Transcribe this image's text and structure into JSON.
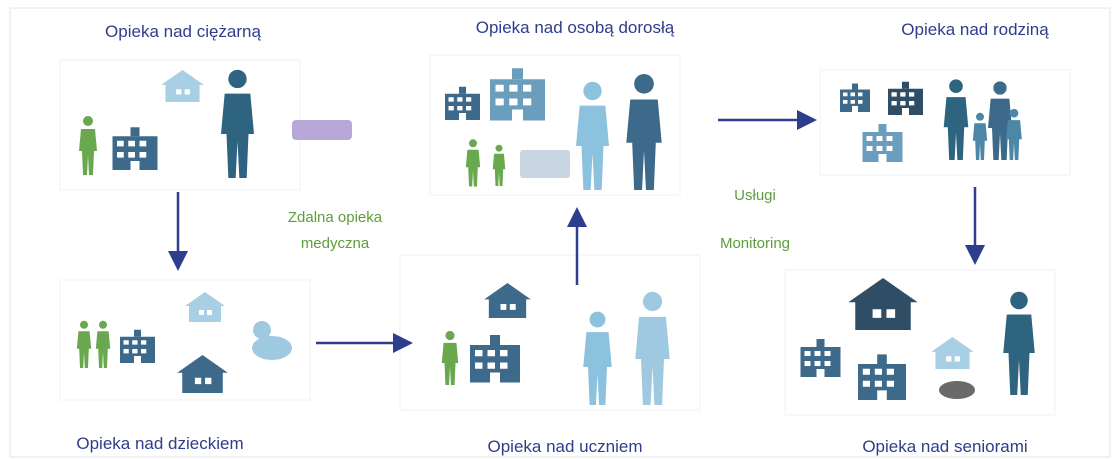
{
  "nodes": [
    {
      "label": "Opieka nad ciężarną"
    },
    {
      "label": "Opieka nad osobą dorosłą"
    },
    {
      "label": "Opieka nad rodziną"
    },
    {
      "label": "Opieka nad dzieckiem"
    },
    {
      "label": "Opieka nad uczniem"
    },
    {
      "label": "Opieka nad seniorami"
    }
  ],
  "annotations": {
    "remote_care": [
      "Zdalna opieka",
      "medyczna"
    ],
    "services": "Usługi",
    "monitoring": "Monitoring"
  }
}
